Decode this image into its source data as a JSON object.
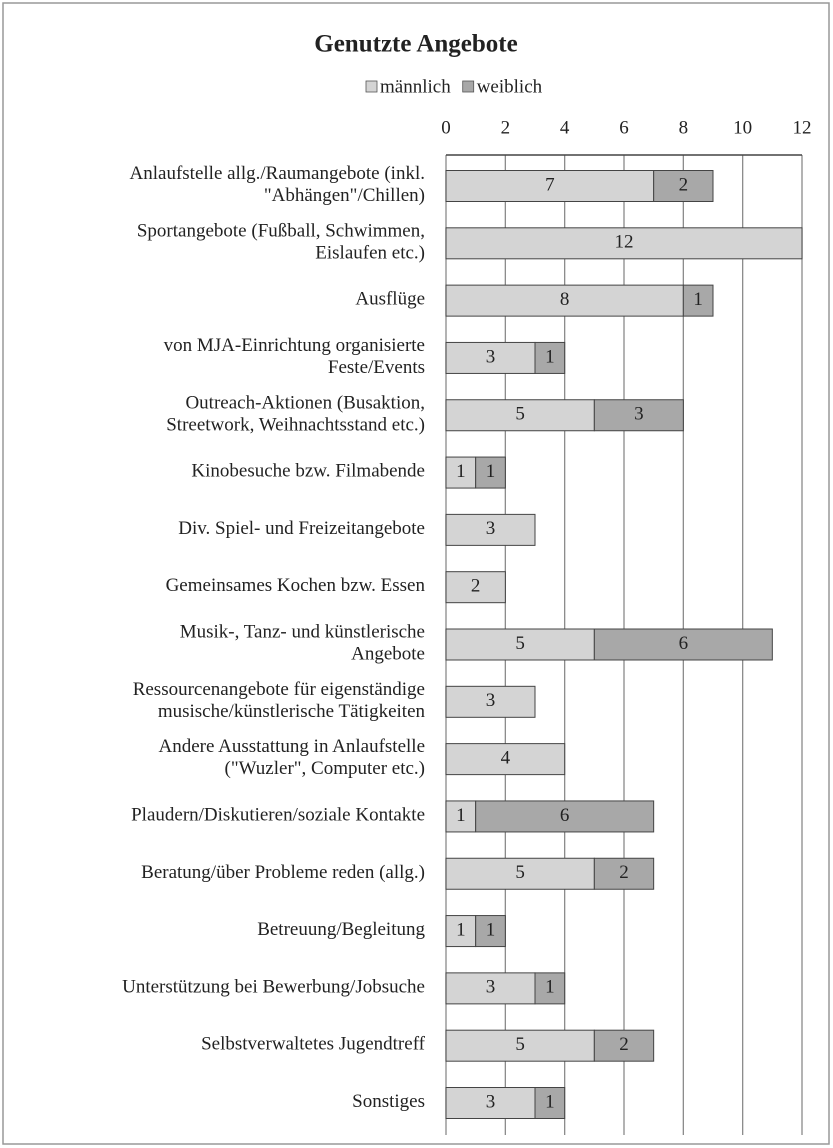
{
  "chart_data": {
    "type": "stacked_bar_horizontal",
    "title": "Genutzte Angebote",
    "categories": [
      "Anlaufstelle allg./Raumangebote (inkl.\n\"Abhängen\"/Chillen)",
      "Sportangebote (Fußball, Schwimmen,\nEislaufen etc.)",
      "Ausflüge",
      "von MJA-Einrichtung organisierte\nFeste/Events",
      "Outreach-Aktionen (Busaktion,\nStreetwork, Weihnachtsstand etc.)",
      "Kinobesuche bzw. Filmabende",
      "Div. Spiel- und Freizeitangebote",
      "Gemeinsames Kochen bzw. Essen",
      "Musik-, Tanz- und künstlerische\nAngebote",
      "Ressourcenangebote für eigenständige\nmusische/künstlerische Tätigkeiten",
      "Andere Ausstattung in Anlaufstelle\n(\"Wuzler\", Computer etc.)",
      "Plaudern/Diskutieren/soziale Kontakte",
      "Beratung/über Probleme reden (allg.)",
      "Betreuung/Begleitung",
      "Unterstützung bei Bewerbung/Jobsuche",
      "Selbstverwaltetes Jugendtreff",
      "Sonstiges"
    ],
    "series": [
      {
        "name": "männlich",
        "color": "#d4d4d4",
        "values": [
          7,
          12,
          8,
          3,
          5,
          1,
          3,
          2,
          5,
          3,
          4,
          1,
          5,
          1,
          3,
          5,
          3
        ]
      },
      {
        "name": "weiblich",
        "color": "#a8a8a8",
        "values": [
          2,
          null,
          1,
          1,
          3,
          1,
          null,
          null,
          6,
          null,
          null,
          6,
          2,
          1,
          1,
          2,
          1
        ]
      }
    ],
    "xlim": [
      0,
      12
    ],
    "xticks": [
      0,
      2,
      4,
      6,
      8,
      10,
      12
    ],
    "grid": true,
    "legend": "top"
  }
}
